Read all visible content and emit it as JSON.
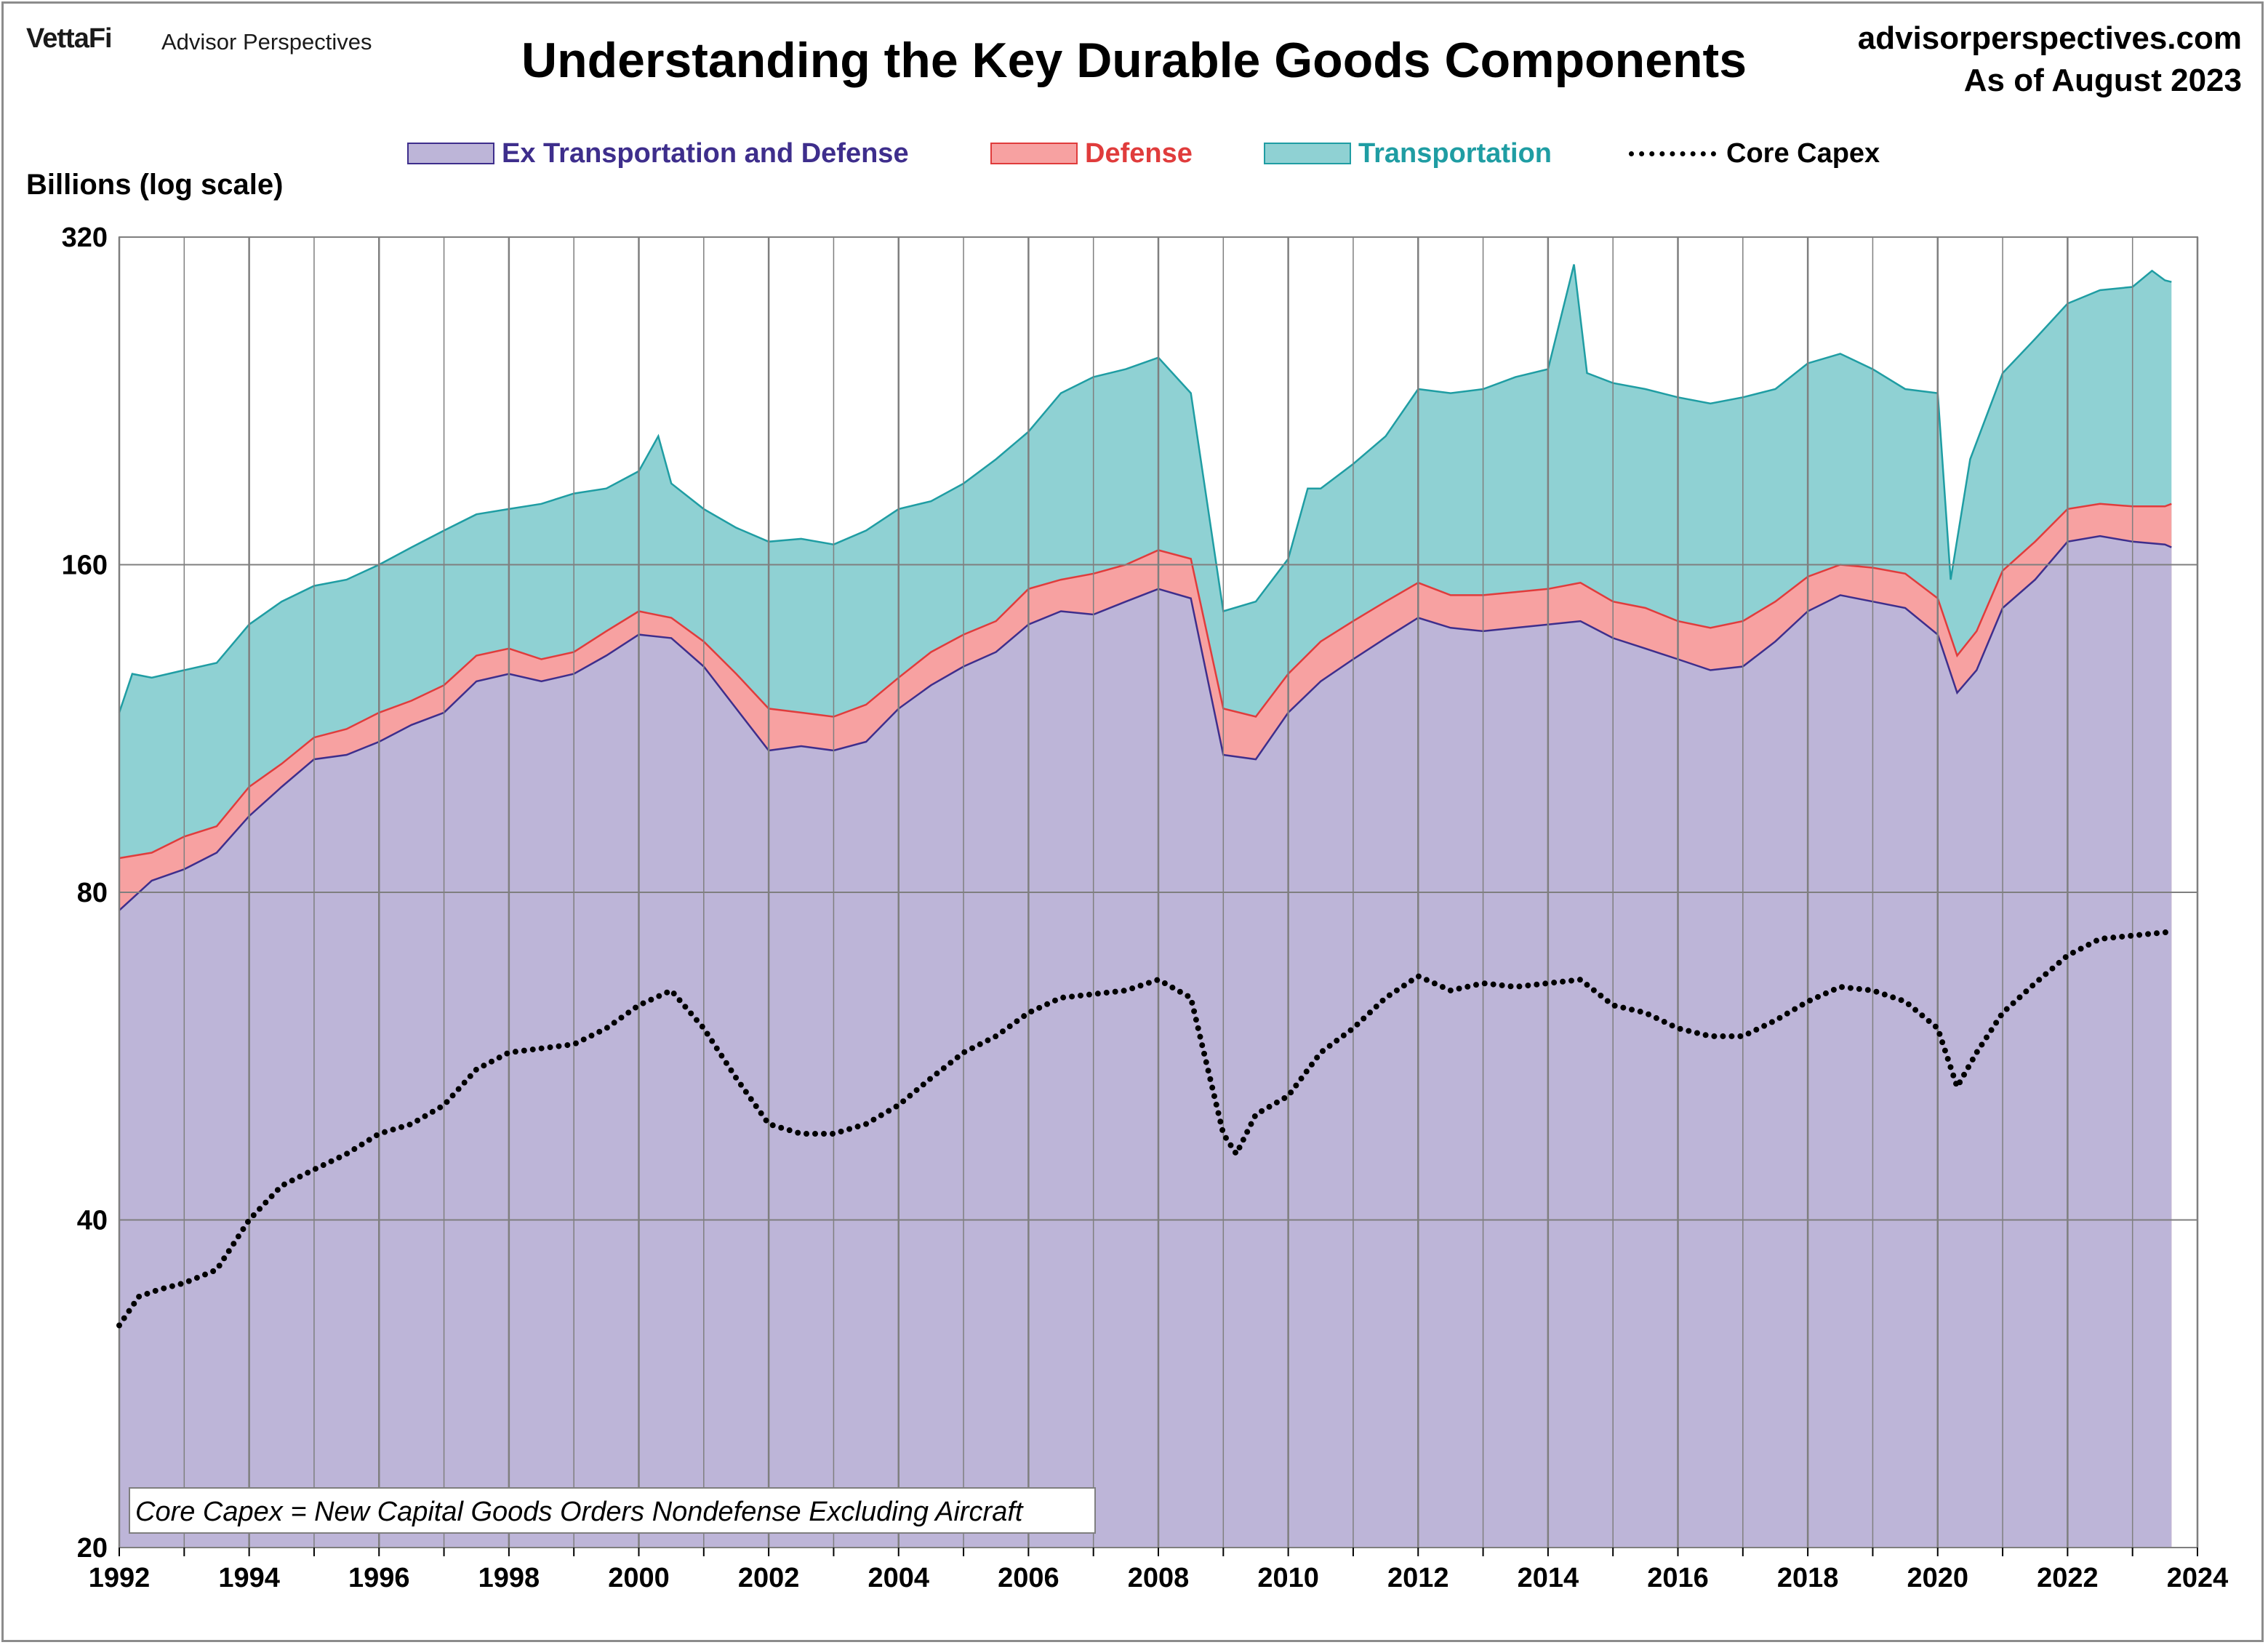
{
  "header": {
    "brand": "VettaFi",
    "brand_sub": "Advisor Perspectives",
    "title": "Understanding the Key Durable Goods Components",
    "site": "advisorperspectives.com",
    "as_of": "As of August 2023"
  },
  "colors": {
    "ex_fill": "#bdb5d8",
    "ex_line": "#3e2e8c",
    "ex_text": "#3e2e8c",
    "defense_fill": "#f7a1a1",
    "defense_line": "#e03c3c",
    "defense_text": "#e03c3c",
    "transport_fill": "#8fd1d3",
    "transport_line": "#1f9da3",
    "transport_text": "#1f9da3",
    "core_line": "#000000",
    "grid": "#7f7f7f"
  },
  "chart_data": {
    "type": "area",
    "title": "Understanding the Key Durable Goods Components",
    "ylabel": "Billions (log scale)",
    "y_scale": "log",
    "ylim": [
      20,
      320
    ],
    "y_ticks": [
      20,
      40,
      80,
      160,
      320
    ],
    "xlim": [
      1992,
      2024
    ],
    "x_ticks": [
      "1992",
      "1994",
      "1996",
      "1998",
      "2000",
      "2002",
      "2004",
      "2006",
      "2008",
      "2010",
      "2012",
      "2014",
      "2016",
      "2018",
      "2020",
      "2022",
      "2024"
    ],
    "grid": true,
    "legend_position": "top",
    "annotation": "Core Capex = New Capital Goods Orders Nondefense Excluding Aircraft",
    "series": [
      {
        "name": "Ex Transportation and Defense",
        "stack": "base",
        "points": [
          [
            1992.0,
            77
          ],
          [
            1992.5,
            82
          ],
          [
            1993.0,
            84
          ],
          [
            1993.5,
            87
          ],
          [
            1994.0,
            94
          ],
          [
            1994.5,
            100
          ],
          [
            1995.0,
            106
          ],
          [
            1995.5,
            107
          ],
          [
            1996.0,
            110
          ],
          [
            1996.5,
            114
          ],
          [
            1997.0,
            117
          ],
          [
            1997.5,
            125
          ],
          [
            1998.0,
            127
          ],
          [
            1998.5,
            125
          ],
          [
            1999.0,
            127
          ],
          [
            1999.5,
            132
          ],
          [
            2000.0,
            138
          ],
          [
            2000.5,
            137
          ],
          [
            2001.0,
            129
          ],
          [
            2001.5,
            118
          ],
          [
            2002.0,
            108
          ],
          [
            2002.5,
            109
          ],
          [
            2003.0,
            108
          ],
          [
            2003.5,
            110
          ],
          [
            2004.0,
            118
          ],
          [
            2004.5,
            124
          ],
          [
            2005.0,
            129
          ],
          [
            2005.5,
            133
          ],
          [
            2006.0,
            141
          ],
          [
            2006.5,
            145
          ],
          [
            2007.0,
            144
          ],
          [
            2007.5,
            148
          ],
          [
            2008.0,
            152
          ],
          [
            2008.5,
            149
          ],
          [
            2009.0,
            107
          ],
          [
            2009.5,
            106
          ],
          [
            2010.0,
            117
          ],
          [
            2010.5,
            125
          ],
          [
            2011.0,
            131
          ],
          [
            2011.5,
            137
          ],
          [
            2012.0,
            143
          ],
          [
            2012.5,
            140
          ],
          [
            2013.0,
            139
          ],
          [
            2013.5,
            140
          ],
          [
            2014.0,
            141
          ],
          [
            2014.5,
            142
          ],
          [
            2015.0,
            137
          ],
          [
            2015.5,
            134
          ],
          [
            2016.0,
            131
          ],
          [
            2016.5,
            128
          ],
          [
            2017.0,
            129
          ],
          [
            2017.5,
            136
          ],
          [
            2018.0,
            145
          ],
          [
            2018.5,
            150
          ],
          [
            2019.0,
            148
          ],
          [
            2019.5,
            146
          ],
          [
            2020.0,
            138
          ],
          [
            2020.3,
            122
          ],
          [
            2020.6,
            128
          ],
          [
            2021.0,
            146
          ],
          [
            2021.5,
            155
          ],
          [
            2022.0,
            168
          ],
          [
            2022.5,
            170
          ],
          [
            2023.0,
            168
          ],
          [
            2023.5,
            167
          ],
          [
            2023.6,
            166
          ]
        ]
      },
      {
        "name": "Defense",
        "stack": "cumulative",
        "points": [
          [
            1992.0,
            86
          ],
          [
            1992.5,
            87
          ],
          [
            1993.0,
            90
          ],
          [
            1993.5,
            92
          ],
          [
            1994.0,
            100
          ],
          [
            1994.5,
            105
          ],
          [
            1995.0,
            111
          ],
          [
            1995.5,
            113
          ],
          [
            1996.0,
            117
          ],
          [
            1996.5,
            120
          ],
          [
            1997.0,
            124
          ],
          [
            1997.5,
            132
          ],
          [
            1998.0,
            134
          ],
          [
            1998.5,
            131
          ],
          [
            1999.0,
            133
          ],
          [
            1999.5,
            139
          ],
          [
            2000.0,
            145
          ],
          [
            2000.5,
            143
          ],
          [
            2001.0,
            136
          ],
          [
            2001.5,
            127
          ],
          [
            2002.0,
            118
          ],
          [
            2002.5,
            117
          ],
          [
            2003.0,
            116
          ],
          [
            2003.5,
            119
          ],
          [
            2004.0,
            126
          ],
          [
            2004.5,
            133
          ],
          [
            2005.0,
            138
          ],
          [
            2005.5,
            142
          ],
          [
            2006.0,
            152
          ],
          [
            2006.5,
            155
          ],
          [
            2007.0,
            157
          ],
          [
            2007.5,
            160
          ],
          [
            2008.0,
            165
          ],
          [
            2008.5,
            162
          ],
          [
            2009.0,
            118
          ],
          [
            2009.5,
            116
          ],
          [
            2010.0,
            127
          ],
          [
            2010.5,
            136
          ],
          [
            2011.0,
            142
          ],
          [
            2011.5,
            148
          ],
          [
            2012.0,
            154
          ],
          [
            2012.5,
            150
          ],
          [
            2013.0,
            150
          ],
          [
            2013.5,
            151
          ],
          [
            2014.0,
            152
          ],
          [
            2014.5,
            154
          ],
          [
            2015.0,
            148
          ],
          [
            2015.5,
            146
          ],
          [
            2016.0,
            142
          ],
          [
            2016.5,
            140
          ],
          [
            2017.0,
            142
          ],
          [
            2017.5,
            148
          ],
          [
            2018.0,
            156
          ],
          [
            2018.5,
            160
          ],
          [
            2019.0,
            159
          ],
          [
            2019.5,
            157
          ],
          [
            2020.0,
            149
          ],
          [
            2020.3,
            132
          ],
          [
            2020.6,
            139
          ],
          [
            2021.0,
            158
          ],
          [
            2021.5,
            168
          ],
          [
            2022.0,
            180
          ],
          [
            2022.5,
            182
          ],
          [
            2023.0,
            181
          ],
          [
            2023.5,
            181
          ],
          [
            2023.6,
            182
          ]
        ]
      },
      {
        "name": "Transportation",
        "stack": "cumulative",
        "points": [
          [
            1992.0,
            117
          ],
          [
            1992.2,
            127
          ],
          [
            1992.5,
            126
          ],
          [
            1993.0,
            128
          ],
          [
            1993.5,
            130
          ],
          [
            1994.0,
            141
          ],
          [
            1994.5,
            148
          ],
          [
            1995.0,
            153
          ],
          [
            1995.5,
            155
          ],
          [
            1996.0,
            160
          ],
          [
            1996.5,
            166
          ],
          [
            1997.0,
            172
          ],
          [
            1997.5,
            178
          ],
          [
            1998.0,
            180
          ],
          [
            1998.5,
            182
          ],
          [
            1999.0,
            186
          ],
          [
            1999.5,
            188
          ],
          [
            2000.0,
            195
          ],
          [
            2000.3,
            210
          ],
          [
            2000.5,
            190
          ],
          [
            2001.0,
            180
          ],
          [
            2001.5,
            173
          ],
          [
            2002.0,
            168
          ],
          [
            2002.5,
            169
          ],
          [
            2003.0,
            167
          ],
          [
            2003.5,
            172
          ],
          [
            2004.0,
            180
          ],
          [
            2004.5,
            183
          ],
          [
            2005.0,
            190
          ],
          [
            2005.5,
            200
          ],
          [
            2006.0,
            212
          ],
          [
            2006.5,
            230
          ],
          [
            2007.0,
            238
          ],
          [
            2007.5,
            242
          ],
          [
            2008.0,
            248
          ],
          [
            2008.5,
            230
          ],
          [
            2009.0,
            145
          ],
          [
            2009.5,
            148
          ],
          [
            2010.0,
            162
          ],
          [
            2010.3,
            188
          ],
          [
            2010.5,
            188
          ],
          [
            2011.0,
            198
          ],
          [
            2011.5,
            210
          ],
          [
            2012.0,
            232
          ],
          [
            2012.5,
            230
          ],
          [
            2013.0,
            232
          ],
          [
            2013.5,
            238
          ],
          [
            2014.0,
            242
          ],
          [
            2014.4,
            302
          ],
          [
            2014.6,
            240
          ],
          [
            2015.0,
            235
          ],
          [
            2015.5,
            232
          ],
          [
            2016.0,
            228
          ],
          [
            2016.5,
            225
          ],
          [
            2017.0,
            228
          ],
          [
            2017.5,
            232
          ],
          [
            2018.0,
            245
          ],
          [
            2018.5,
            250
          ],
          [
            2019.0,
            242
          ],
          [
            2019.5,
            232
          ],
          [
            2020.0,
            230
          ],
          [
            2020.2,
            155
          ],
          [
            2020.5,
            200
          ],
          [
            2021.0,
            240
          ],
          [
            2021.5,
            258
          ],
          [
            2022.0,
            278
          ],
          [
            2022.5,
            286
          ],
          [
            2023.0,
            288
          ],
          [
            2023.3,
            298
          ],
          [
            2023.5,
            292
          ],
          [
            2023.6,
            291
          ]
        ]
      },
      {
        "name": "Core Capex",
        "stack": "none",
        "points": [
          [
            1992.0,
            32
          ],
          [
            1992.3,
            34
          ],
          [
            1992.6,
            34.5
          ],
          [
            1993.0,
            35
          ],
          [
            1993.5,
            36
          ],
          [
            1994.0,
            40
          ],
          [
            1994.5,
            43
          ],
          [
            1995.0,
            44.5
          ],
          [
            1995.5,
            46
          ],
          [
            1996.0,
            48
          ],
          [
            1996.5,
            49
          ],
          [
            1997.0,
            51
          ],
          [
            1997.5,
            55
          ],
          [
            1998.0,
            57
          ],
          [
            1998.5,
            57.5
          ],
          [
            1999.0,
            58
          ],
          [
            1999.5,
            60
          ],
          [
            2000.0,
            63
          ],
          [
            2000.5,
            65
          ],
          [
            2001.0,
            60
          ],
          [
            2001.5,
            54
          ],
          [
            2002.0,
            49
          ],
          [
            2002.5,
            48
          ],
          [
            2003.0,
            48
          ],
          [
            2003.5,
            49
          ],
          [
            2004.0,
            51
          ],
          [
            2004.5,
            54
          ],
          [
            2005.0,
            57
          ],
          [
            2005.5,
            59
          ],
          [
            2006.0,
            62
          ],
          [
            2006.5,
            64
          ],
          [
            2007.0,
            64.5
          ],
          [
            2007.5,
            65
          ],
          [
            2008.0,
            66.5
          ],
          [
            2008.5,
            64
          ],
          [
            2009.0,
            48
          ],
          [
            2009.2,
            46
          ],
          [
            2009.5,
            50
          ],
          [
            2010.0,
            52
          ],
          [
            2010.5,
            57
          ],
          [
            2011.0,
            60
          ],
          [
            2011.5,
            64
          ],
          [
            2012.0,
            67
          ],
          [
            2012.5,
            65
          ],
          [
            2013.0,
            66
          ],
          [
            2013.5,
            65.5
          ],
          [
            2014.0,
            66
          ],
          [
            2014.5,
            66.5
          ],
          [
            2015.0,
            63
          ],
          [
            2015.5,
            62
          ],
          [
            2016.0,
            60
          ],
          [
            2016.5,
            59
          ],
          [
            2017.0,
            59
          ],
          [
            2017.5,
            61
          ],
          [
            2018.0,
            63.5
          ],
          [
            2018.5,
            65.5
          ],
          [
            2019.0,
            65
          ],
          [
            2019.5,
            63.5
          ],
          [
            2020.0,
            60
          ],
          [
            2020.3,
            53
          ],
          [
            2020.6,
            57
          ],
          [
            2021.0,
            62
          ],
          [
            2021.5,
            66
          ],
          [
            2022.0,
            70
          ],
          [
            2022.5,
            72.5
          ],
          [
            2023.0,
            73
          ],
          [
            2023.6,
            73.6
          ]
        ]
      }
    ]
  }
}
